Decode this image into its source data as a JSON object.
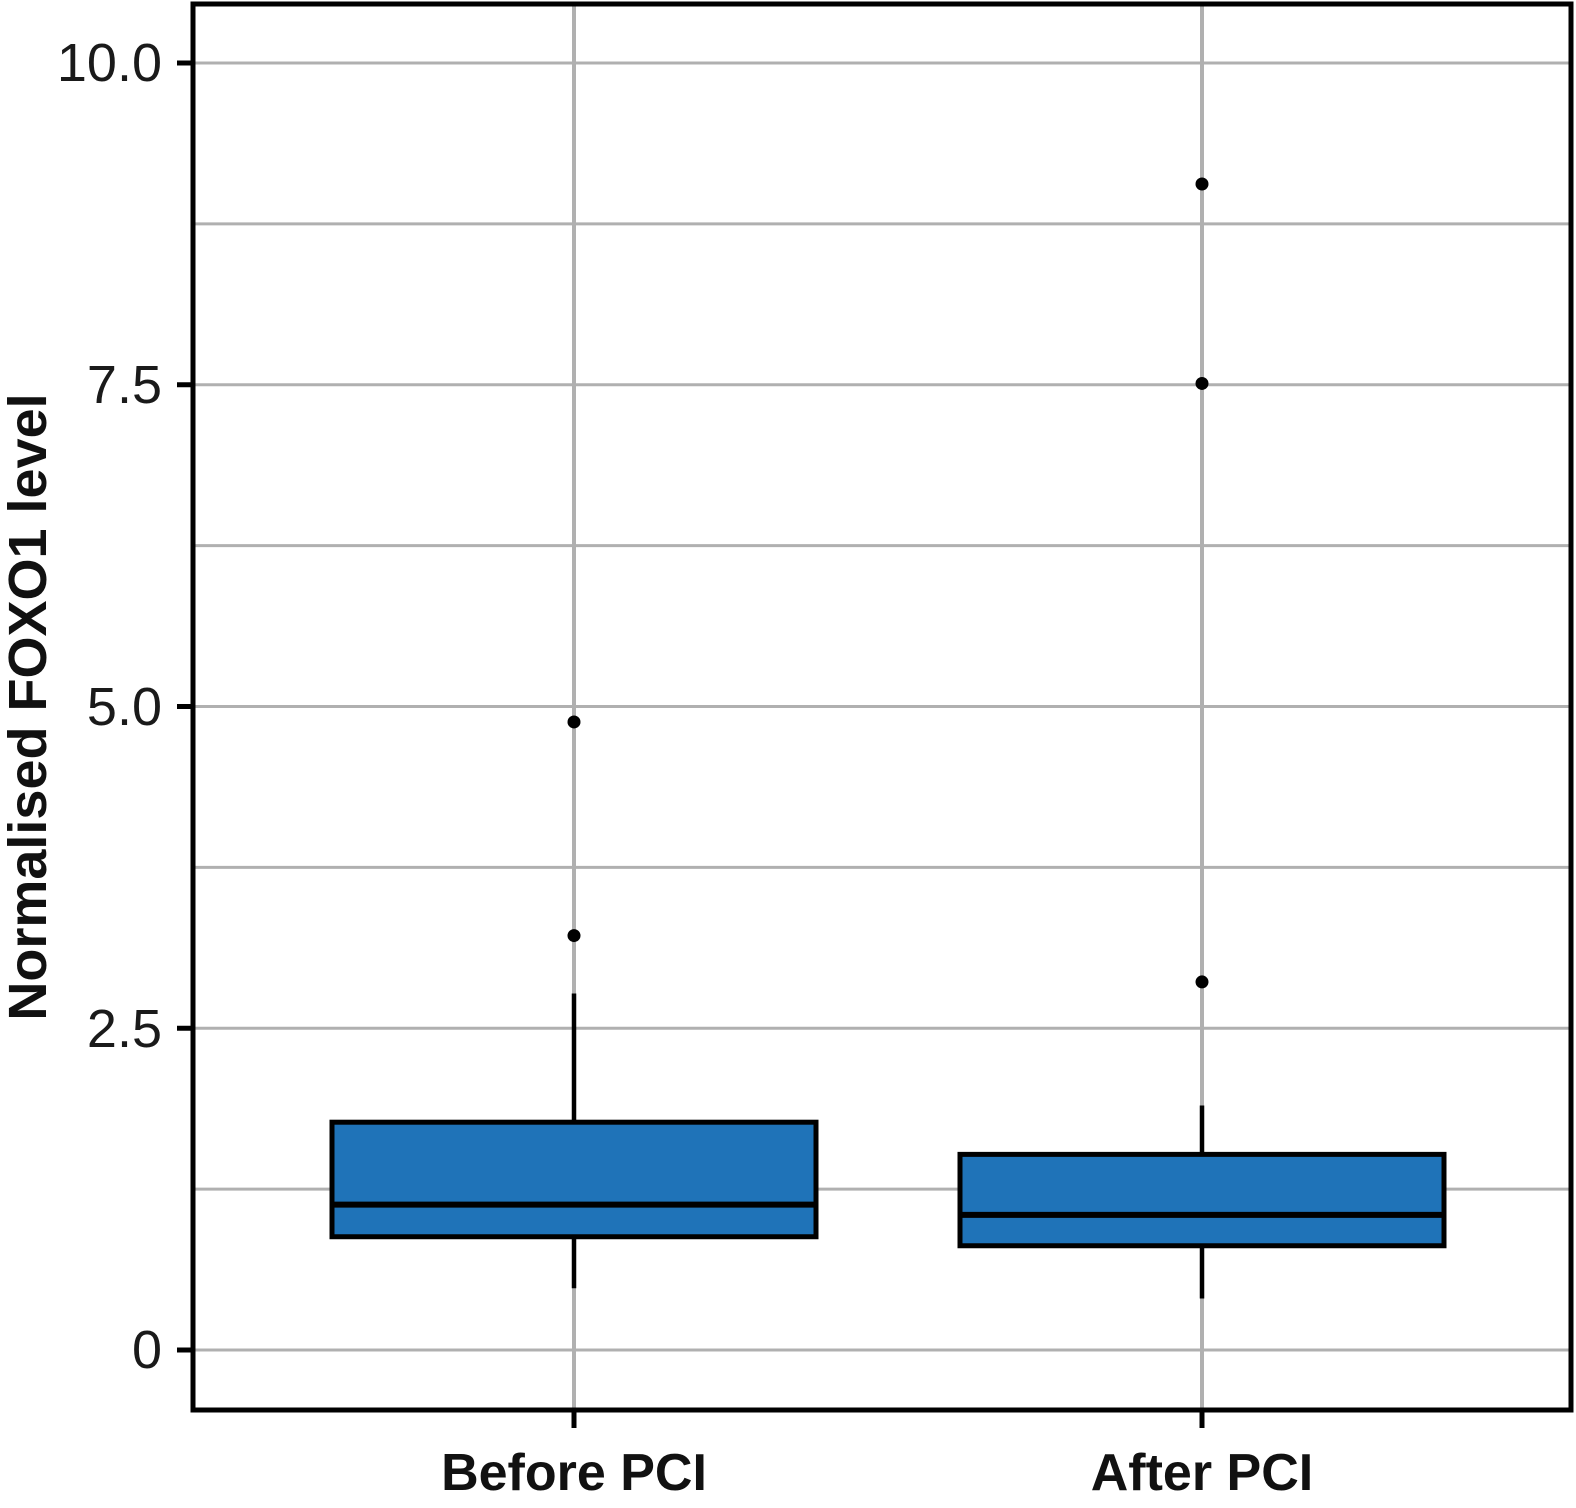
{
  "chart_data": {
    "type": "boxplot",
    "title": "",
    "xlabel": "",
    "ylabel": "Normalised FOXO1 level",
    "categories": [
      "Before PCI",
      "After PCI"
    ],
    "ylim": [
      -0.47,
      10.46
    ],
    "ytick_values": [
      10.0,
      7.5,
      5.0,
      2.5,
      0
    ],
    "ytick_labels": [
      "10.0",
      "7.5",
      "5.0",
      "2.5",
      "0"
    ],
    "minor_grid_step": 1.25,
    "grid": true,
    "legend": "none",
    "series": [
      {
        "name": "Before PCI",
        "q1": 0.88,
        "median": 1.13,
        "q3": 1.77,
        "whisker_low": 0.48,
        "whisker_high": 2.77,
        "outliers": [
          3.22,
          4.88
        ]
      },
      {
        "name": "After PCI",
        "q1": 0.81,
        "median": 1.05,
        "q3": 1.52,
        "whisker_low": 0.4,
        "whisker_high": 1.9,
        "outliers": [
          2.86,
          7.51,
          9.06
        ]
      }
    ],
    "colors": {
      "box_fill": "#1f73b8",
      "box_stroke": "#000000",
      "median": "#000000",
      "whisker": "#000000",
      "outlier": "#000000",
      "grid": "#b0b0b0",
      "spine": "#000000",
      "text": "#1a1a1a"
    }
  }
}
